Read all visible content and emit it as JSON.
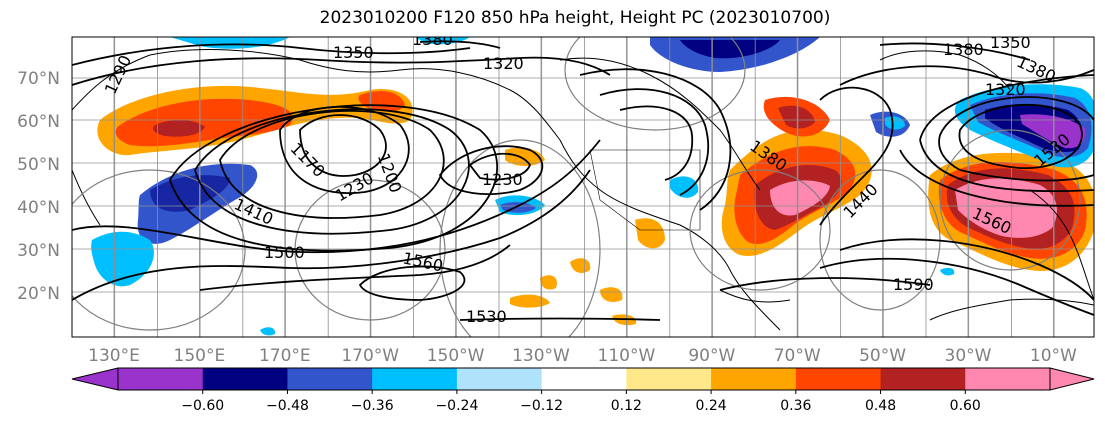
{
  "title": "2023010200 F120 850 hPa height, Height PC (2023010700)",
  "y_tick_labels": [
    "70°N",
    "60°N",
    "50°N",
    "40°N",
    "30°N",
    "20°N"
  ],
  "x_tick_labels": [
    "130°E",
    "150°E",
    "170°E",
    "170°W",
    "150°W",
    "130°W",
    "110°W",
    "90°W",
    "70°W",
    "50°W",
    "30°W",
    "10°W"
  ],
  "contour_labels": [
    "1350",
    "1380",
    "1320",
    "1290",
    "1170",
    "1230",
    "1200",
    "1230",
    "1410",
    "1500",
    "1560",
    "1530",
    "1380",
    "1350",
    "1380",
    "1320",
    "1380",
    "1440",
    "1590",
    "1560",
    "1530"
  ],
  "colorbar": {
    "tick_labels": [
      "−0.60",
      "−0.48",
      "−0.36",
      "−0.24",
      "−0.12",
      "0.12",
      "0.24",
      "0.36",
      "0.48",
      "0.60"
    ],
    "colors": [
      "#9933cc",
      "#000080",
      "#3355cc",
      "#00bfff",
      "#aee3fb",
      "#ffffff",
      "#ffe88a",
      "#ffa500",
      "#ff4500",
      "#b22222",
      "#ff88b0",
      "#ff88b0"
    ]
  }
}
